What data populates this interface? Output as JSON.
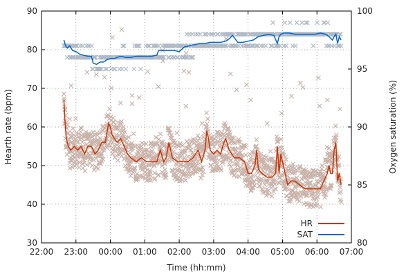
{
  "chart_data": {
    "type": "line",
    "xlabel": "Time (hh:mm)",
    "ylabel_left": "Hearth rate (bpm)",
    "ylabel_right": "Oxygen saturation (%)",
    "x_range_hours": [
      22,
      31
    ],
    "x_ticks": [
      "22:00",
      "23:00",
      "00:00",
      "01:00",
      "02:00",
      "03:00",
      "04:00",
      "05:00",
      "06:00",
      "07:00"
    ],
    "y_left_range": [
      30,
      90
    ],
    "y_left_ticks": [
      "30",
      "40",
      "50",
      "60",
      "70",
      "80",
      "90"
    ],
    "y_right_range": [
      80,
      100
    ],
    "y_right_ticks": [
      "80",
      "85",
      "90",
      "95",
      "100"
    ],
    "grid": true,
    "legend_position": "bottom-right",
    "legend": [
      {
        "label": "HR",
        "color": "#cc3300"
      },
      {
        "label": "SAT",
        "color": "#0066cc"
      }
    ],
    "colors": {
      "hr_line": "#cc3300",
      "sat_line": "#0066cc",
      "hr_raw": "#c9b3aa",
      "sat_raw": "#b0bac6"
    },
    "series": [
      {
        "name": "HR",
        "axis": "left",
        "x_hours": [
          22.65,
          22.68,
          22.72,
          22.78,
          22.85,
          22.95,
          23.05,
          23.15,
          23.25,
          23.35,
          23.45,
          23.55,
          23.65,
          23.75,
          23.85,
          23.95,
          24.0,
          24.05,
          24.12,
          24.2,
          24.3,
          24.4,
          24.5,
          24.6,
          24.75,
          24.9,
          25.05,
          25.2,
          25.35,
          25.45,
          25.55,
          25.62,
          25.7,
          25.8,
          25.95,
          26.1,
          26.25,
          26.4,
          26.55,
          26.65,
          26.75,
          26.8,
          26.85,
          26.9,
          27.0,
          27.1,
          27.2,
          27.3,
          27.35,
          27.45,
          27.6,
          27.75,
          27.9,
          28.0,
          28.1,
          28.2,
          28.25,
          28.3,
          28.4,
          28.55,
          28.7,
          28.8,
          28.85,
          28.9,
          28.95,
          29.05,
          29.15,
          29.25,
          29.35,
          29.5,
          29.65,
          29.8,
          29.95,
          30.1,
          30.2,
          30.3,
          30.35,
          30.4,
          30.45,
          30.5,
          30.55,
          30.6,
          30.65,
          30.7
        ],
        "values": [
          67,
          62,
          57,
          55,
          54,
          55,
          54,
          55,
          53,
          55,
          55,
          53,
          54,
          56,
          56,
          61,
          60,
          58,
          57,
          56,
          57,
          55,
          53,
          52,
          51,
          52,
          51,
          51,
          51,
          54,
          51,
          52,
          56,
          52,
          51,
          51,
          51,
          52,
          54,
          51,
          54,
          59,
          57,
          54,
          53,
          54,
          53,
          56,
          57,
          54,
          52,
          52,
          51,
          48,
          48,
          50,
          54,
          49,
          48,
          47,
          47,
          48,
          55,
          48,
          53,
          49,
          45,
          46,
          46,
          45,
          44,
          44,
          44,
          44,
          46,
          48,
          50,
          48,
          48,
          54,
          56,
          46,
          48,
          45
        ]
      },
      {
        "name": "SAT",
        "axis": "right",
        "x_hours": [
          22.65,
          22.7,
          22.75,
          22.82,
          22.9,
          23.0,
          23.1,
          23.2,
          23.35,
          23.45,
          23.5,
          23.6,
          23.7,
          23.8,
          23.9,
          24.0,
          24.1,
          24.2,
          24.3,
          24.45,
          24.6,
          24.75,
          24.9,
          25.05,
          25.2,
          25.35,
          25.4,
          25.55,
          25.7,
          25.85,
          26.0,
          26.15,
          26.3,
          26.45,
          26.6,
          26.75,
          26.9,
          27.05,
          27.2,
          27.35,
          27.45,
          27.55,
          27.7,
          27.85,
          28.0,
          28.15,
          28.3,
          28.45,
          28.6,
          28.75,
          28.85,
          28.9,
          28.95,
          29.05,
          29.2,
          29.35,
          29.5,
          29.65,
          29.8,
          29.95,
          30.1,
          30.25,
          30.35,
          30.45,
          30.5,
          30.55,
          30.6,
          30.65,
          30.7
        ],
        "values": [
          97.5,
          97.0,
          96.8,
          97.0,
          96.6,
          96.5,
          96.3,
          96.2,
          96.1,
          96.1,
          95.5,
          95.4,
          95.6,
          95.6,
          95.8,
          95.9,
          95.9,
          96.0,
          96.1,
          96.0,
          96.0,
          96.1,
          96.1,
          96.1,
          96.1,
          96.2,
          96.6,
          96.6,
          96.6,
          96.6,
          96.5,
          96.9,
          97.0,
          97.1,
          97.2,
          97.2,
          97.3,
          97.3,
          97.3,
          97.4,
          97.6,
          97.9,
          97.3,
          97.3,
          97.4,
          97.5,
          97.8,
          97.9,
          98.0,
          97.9,
          97.2,
          97.8,
          98.0,
          98.1,
          98.1,
          98.0,
          98.0,
          98.0,
          98.0,
          98.0,
          98.1,
          98.0,
          97.8,
          97.5,
          97.8,
          98.0,
          97.2,
          97.8,
          97.5
        ]
      }
    ]
  }
}
